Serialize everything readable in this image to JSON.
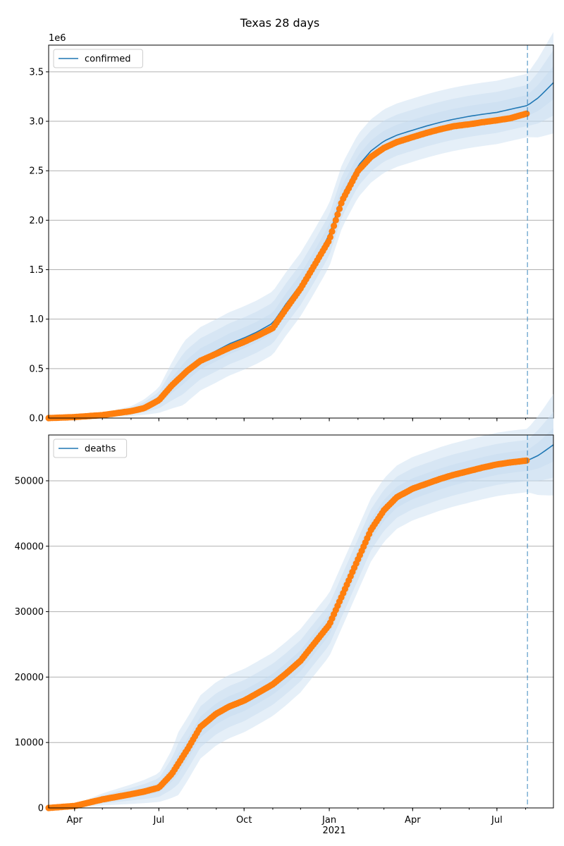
{
  "figure": {
    "title": "Texas 28 days"
  },
  "x_axis": {
    "tick_labels": [
      "Apr",
      "Jul",
      "Oct",
      "Jan",
      "Apr",
      "Jul"
    ],
    "year_label": "2021"
  },
  "colors": {
    "series": "#1f77b4",
    "observed": "#ff7f0e",
    "band": "#c6dbef",
    "grid": "#b0b0b0",
    "forecast_line": "#1f77b4"
  },
  "chart_data": [
    {
      "type": "line",
      "panel": "top",
      "legend": [
        "confirmed"
      ],
      "legend_position": "upper-left",
      "grid": "horizontal",
      "scale_label": "1e6",
      "xlim": [
        "2020-03-04",
        "2021-08-31"
      ],
      "ylim": [
        0,
        3.77
      ],
      "y_ticks": [
        "0.0",
        "0.5",
        "1.0",
        "1.5",
        "2.0",
        "2.5",
        "3.0",
        "3.5"
      ],
      "forecast_start": "2021-08-03",
      "series": [
        {
          "name": "confirmed",
          "x": [
            "2020-03-04",
            "2020-04-01",
            "2020-05-01",
            "2020-06-01",
            "2020-06-15",
            "2020-07-01",
            "2020-07-15",
            "2020-08-01",
            "2020-08-15",
            "2020-09-01",
            "2020-09-15",
            "2020-10-01",
            "2020-10-15",
            "2020-11-01",
            "2020-11-15",
            "2020-12-01",
            "2020-12-15",
            "2021-01-01",
            "2021-01-15",
            "2021-02-01",
            "2021-02-15",
            "2021-03-01",
            "2021-03-15",
            "2021-04-01",
            "2021-04-15",
            "2021-05-01",
            "2021-05-15",
            "2021-06-01",
            "2021-06-15",
            "2021-07-01",
            "2021-07-15",
            "2021-08-03",
            "2021-08-15",
            "2021-08-31"
          ],
          "values": [
            0,
            0.01,
            0.03,
            0.07,
            0.11,
            0.18,
            0.33,
            0.49,
            0.6,
            0.68,
            0.75,
            0.81,
            0.87,
            0.96,
            1.15,
            1.35,
            1.57,
            1.85,
            2.25,
            2.55,
            2.7,
            2.8,
            2.86,
            2.91,
            2.95,
            2.99,
            3.02,
            3.05,
            3.07,
            3.09,
            3.12,
            3.16,
            3.24,
            3.39
          ]
        },
        {
          "name": "observed",
          "x": [
            "2020-03-04",
            "2020-04-01",
            "2020-05-01",
            "2020-06-01",
            "2020-06-15",
            "2020-07-01",
            "2020-07-15",
            "2020-08-01",
            "2020-08-15",
            "2020-09-01",
            "2020-09-15",
            "2020-10-01",
            "2020-10-15",
            "2020-11-01",
            "2020-11-15",
            "2020-12-01",
            "2020-12-15",
            "2021-01-01",
            "2021-01-15",
            "2021-02-01",
            "2021-02-15",
            "2021-03-01",
            "2021-03-15",
            "2021-04-01",
            "2021-04-15",
            "2021-05-01",
            "2021-05-15",
            "2021-06-01",
            "2021-06-15",
            "2021-07-01",
            "2021-07-15",
            "2021-08-03"
          ],
          "values": [
            0,
            0.01,
            0.03,
            0.07,
            0.1,
            0.18,
            0.33,
            0.48,
            0.58,
            0.65,
            0.71,
            0.77,
            0.83,
            0.91,
            1.1,
            1.31,
            1.53,
            1.8,
            2.2,
            2.5,
            2.64,
            2.73,
            2.79,
            2.84,
            2.88,
            2.92,
            2.95,
            2.97,
            2.99,
            3.01,
            3.03,
            3.08
          ]
        }
      ]
    },
    {
      "type": "line",
      "panel": "bottom",
      "legend": [
        "deaths"
      ],
      "legend_position": "upper-left",
      "grid": "horizontal",
      "xlim": [
        "2020-03-04",
        "2021-08-31"
      ],
      "ylim": [
        0,
        57000
      ],
      "y_ticks": [
        "0",
        "10000",
        "20000",
        "30000",
        "40000",
        "50000"
      ],
      "forecast_start": "2021-08-03",
      "series": [
        {
          "name": "deaths",
          "x": [
            "2020-03-04",
            "2020-04-01",
            "2020-05-01",
            "2020-06-01",
            "2020-06-15",
            "2020-07-01",
            "2020-07-15",
            "2020-08-01",
            "2020-08-15",
            "2020-09-01",
            "2020-09-15",
            "2020-10-01",
            "2020-10-15",
            "2020-11-01",
            "2020-11-15",
            "2020-12-01",
            "2020-12-15",
            "2021-01-01",
            "2021-01-15",
            "2021-02-01",
            "2021-02-15",
            "2021-03-01",
            "2021-03-15",
            "2021-04-01",
            "2021-04-15",
            "2021-05-01",
            "2021-05-15",
            "2021-06-01",
            "2021-06-15",
            "2021-07-01",
            "2021-07-15",
            "2021-08-03",
            "2021-08-15",
            "2021-08-31"
          ],
          "values": [
            0,
            300,
            1300,
            2100,
            2500,
            3100,
            5200,
            9000,
            12400,
            14400,
            15500,
            16400,
            17500,
            18900,
            20500,
            22500,
            25000,
            28000,
            32500,
            38000,
            42500,
            45500,
            47500,
            48800,
            49500,
            50300,
            50900,
            51500,
            52000,
            52500,
            52800,
            53100,
            53900,
            55500
          ]
        },
        {
          "name": "observed",
          "x": [
            "2020-03-04",
            "2020-04-01",
            "2020-05-01",
            "2020-06-01",
            "2020-06-15",
            "2020-07-01",
            "2020-07-15",
            "2020-08-01",
            "2020-08-15",
            "2020-09-01",
            "2020-09-15",
            "2020-10-01",
            "2020-10-15",
            "2020-11-01",
            "2020-11-15",
            "2020-12-01",
            "2020-12-15",
            "2021-01-01",
            "2021-01-15",
            "2021-02-01",
            "2021-02-15",
            "2021-03-01",
            "2021-03-15",
            "2021-04-01",
            "2021-04-15",
            "2021-05-01",
            "2021-05-15",
            "2021-06-01",
            "2021-06-15",
            "2021-07-01",
            "2021-07-15",
            "2021-08-03"
          ],
          "values": [
            0,
            300,
            1300,
            2100,
            2500,
            3100,
            5200,
            9000,
            12400,
            14400,
            15500,
            16400,
            17500,
            18900,
            20500,
            22500,
            25000,
            28000,
            32500,
            38000,
            42500,
            45500,
            47500,
            48800,
            49500,
            50300,
            50900,
            51500,
            52000,
            52500,
            52800,
            53100
          ]
        }
      ]
    }
  ]
}
